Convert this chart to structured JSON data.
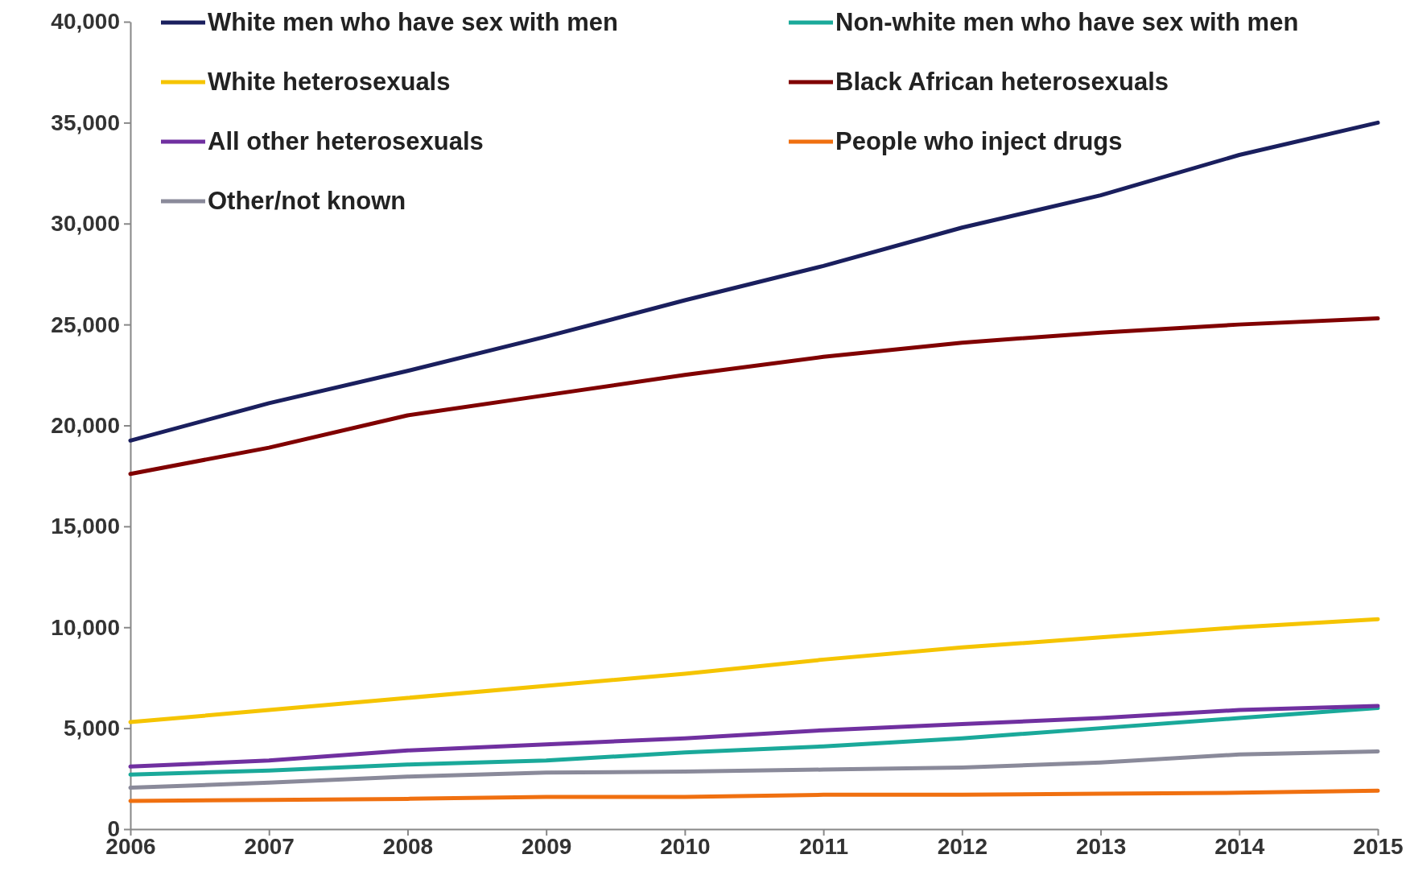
{
  "chart_data": {
    "type": "line",
    "x": [
      2006,
      2007,
      2008,
      2009,
      2010,
      2011,
      2012,
      2013,
      2014,
      2015
    ],
    "xlim": [
      2006,
      2015
    ],
    "xticks": [
      2006,
      2007,
      2008,
      2009,
      2010,
      2011,
      2012,
      2013,
      2014,
      2015
    ],
    "ylim": [
      0,
      40000
    ],
    "yticks": [
      0,
      {
        "value": 5000,
        "label": "5,000"
      },
      {
        "value": 10000,
        "label": "10,000"
      },
      {
        "value": 15000,
        "label": "15,000"
      },
      {
        "value": 20000,
        "label": "20,000"
      },
      {
        "value": 25000,
        "label": "25,000"
      },
      {
        "value": 30000,
        "label": "30,000"
      },
      {
        "value": 35000,
        "label": "35,000"
      },
      {
        "value": 40000,
        "label": "40,000"
      }
    ],
    "grid": false,
    "legend": "top left",
    "marker": "none",
    "line_style": "solid",
    "series": [
      {
        "name": "White men who have sex with men",
        "color": "#1a1f5e",
        "values": [
          19250,
          21100,
          22700,
          24400,
          26200,
          27900,
          29800,
          31400,
          33400,
          35000
        ]
      },
      {
        "name": "Non-white men who have sex with men",
        "color": "#1aa99a",
        "values": [
          2700,
          2900,
          3200,
          3400,
          3800,
          4100,
          4500,
          5000,
          5500,
          6000
        ]
      },
      {
        "name": "White heterosexuals",
        "color": "#f5c400",
        "values": [
          5300,
          5900,
          6500,
          7100,
          7700,
          8400,
          9000,
          9500,
          10000,
          10400
        ]
      },
      {
        "name": "Black African heterosexuals",
        "color": "#800000",
        "values": [
          17600,
          18900,
          20500,
          21500,
          22500,
          23400,
          24100,
          24600,
          25000,
          25300
        ]
      },
      {
        "name": "All other heterosexuals",
        "color": "#7030a0",
        "values": [
          3100,
          3400,
          3900,
          4200,
          4500,
          4900,
          5200,
          5500,
          5900,
          6100
        ]
      },
      {
        "name": "People who inject drugs",
        "color": "#f07010",
        "values": [
          1400,
          1450,
          1500,
          1600,
          1600,
          1700,
          1700,
          1750,
          1800,
          1900
        ]
      },
      {
        "name": "Other/not known",
        "color": "#8a8a9a",
        "values": [
          2050,
          2300,
          2600,
          2800,
          2850,
          2950,
          3050,
          3300,
          3700,
          3850
        ]
      }
    ]
  }
}
